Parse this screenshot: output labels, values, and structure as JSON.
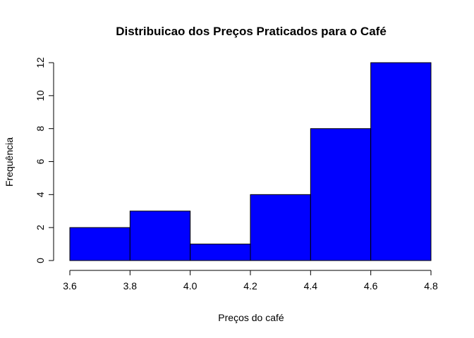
{
  "chart_data": {
    "type": "bar",
    "title": "Distribuicao dos Preços Praticados para o Café",
    "xlabel": "Preços do café",
    "ylabel": "Frequência",
    "bins": [
      {
        "start": 3.6,
        "end": 3.8,
        "value": 2
      },
      {
        "start": 3.8,
        "end": 4.0,
        "value": 3
      },
      {
        "start": 4.0,
        "end": 4.2,
        "value": 1
      },
      {
        "start": 4.2,
        "end": 4.4,
        "value": 4
      },
      {
        "start": 4.4,
        "end": 4.6,
        "value": 8
      },
      {
        "start": 4.6,
        "end": 4.8,
        "value": 12
      }
    ],
    "xlim": [
      3.6,
      4.8
    ],
    "ylim": [
      0,
      12
    ],
    "x_ticks": [
      "3.6",
      "3.8",
      "4.0",
      "4.2",
      "4.4",
      "4.6",
      "4.8"
    ],
    "y_ticks": [
      "0",
      "2",
      "4",
      "6",
      "8",
      "10",
      "12"
    ],
    "bar_color": "#0000FF",
    "grid": false
  }
}
